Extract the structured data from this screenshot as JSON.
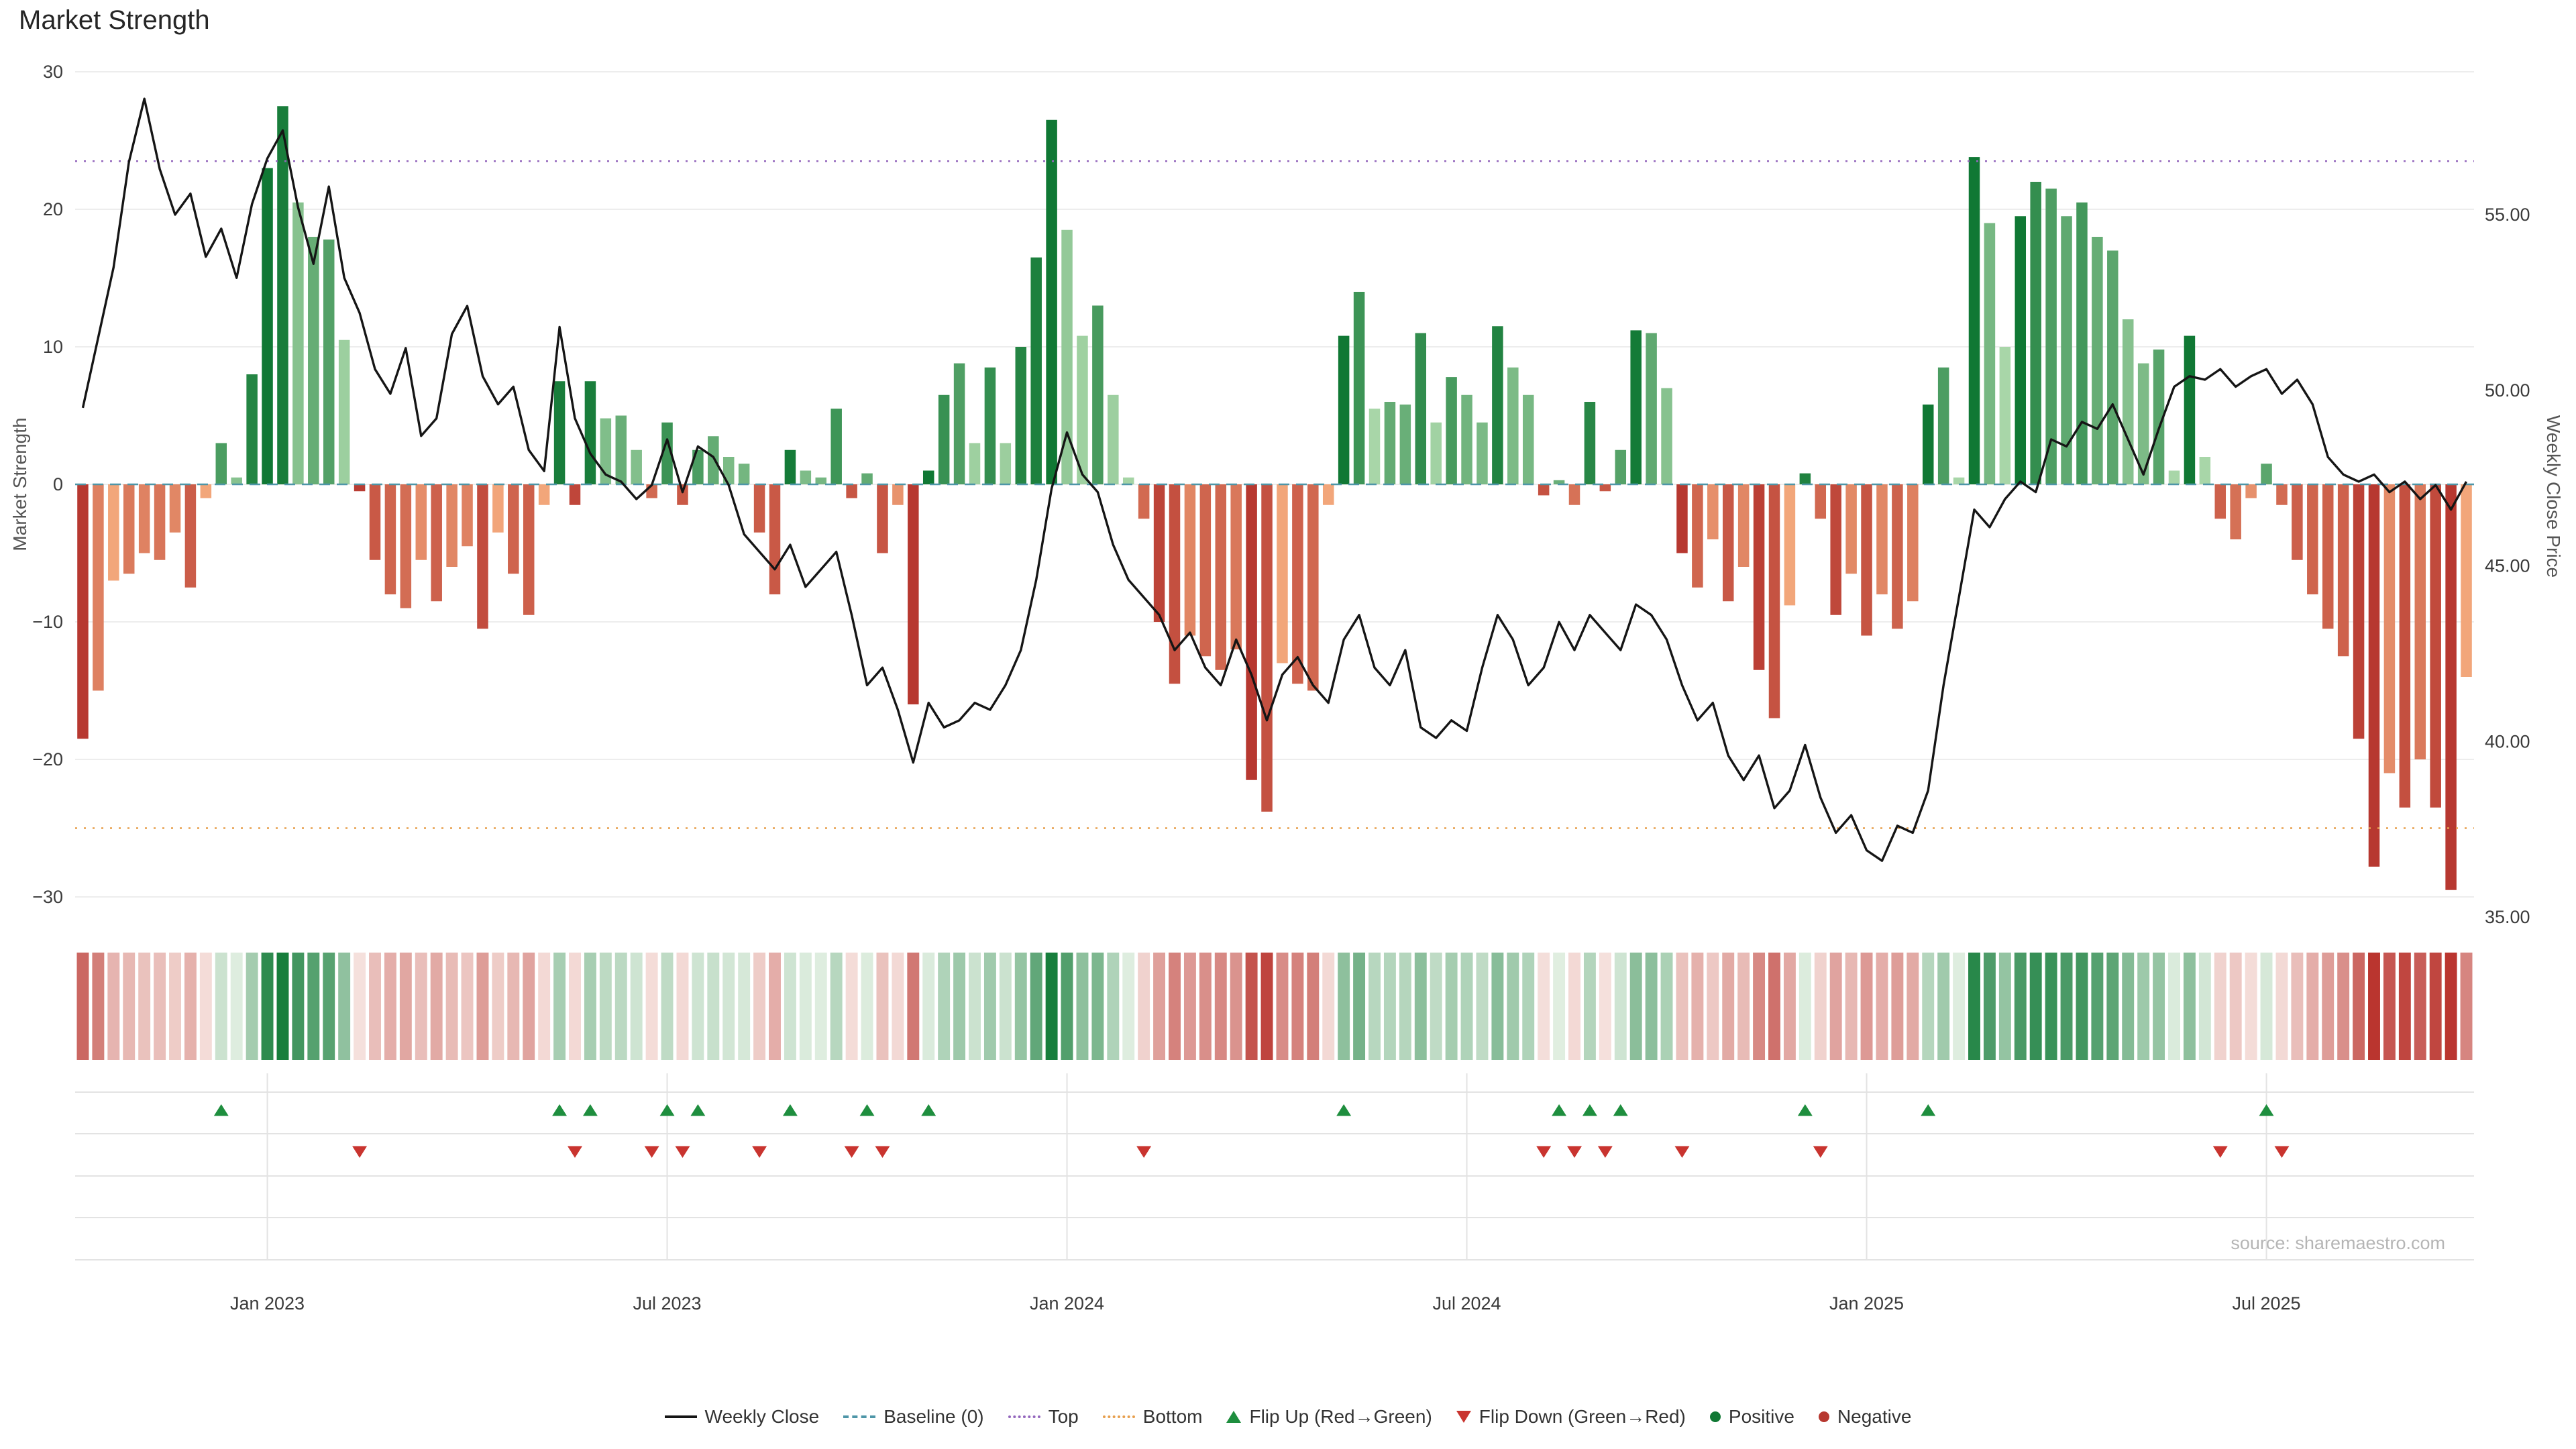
{
  "title": "Market Strength",
  "source_note": "source: sharemaestro.com",
  "colors": {
    "weekly_close_line": "#151515",
    "baseline": "#4e96a8",
    "top_line": "#9467bd",
    "bottom_line": "#e79f4d",
    "positive_dark": "#107834",
    "positive_light": "#a8d6a8",
    "negative_dark": "#b73830",
    "negative_light": "#f2a67a",
    "flip_up": "#1e8e3e",
    "flip_down": "#c9342f",
    "grid": "#ededed",
    "panel_grid": "#e3e3e3",
    "tick_text": "#3b3b3b"
  },
  "chart_data": {
    "type": "bar+line",
    "title": "Market Strength",
    "n_points": 156,
    "x_axis": {
      "unit": "week",
      "tick_labels": [
        "Jan 2023",
        "Jul 2023",
        "Jan 2024",
        "Jul 2024",
        "Jan 2025",
        "Jul 2025"
      ],
      "tick_weeks": [
        12,
        38,
        64,
        90,
        116,
        142
      ]
    },
    "left_axis": {
      "label": "Market Strength",
      "range": [
        -30,
        30
      ],
      "ticks": [
        30,
        20,
        10,
        0,
        -10,
        -20,
        -30
      ],
      "tick_labels": [
        "30",
        "20",
        "10",
        "0",
        "−10",
        "−20",
        "−30"
      ]
    },
    "right_axis": {
      "label": "Weekly Close Price",
      "ticks": [
        55,
        50,
        45,
        40,
        35
      ],
      "tick_labels": [
        "55.00",
        "50.00",
        "45.00",
        "40.00",
        "35.00"
      ]
    },
    "series": [
      {
        "name": "Market Strength",
        "type": "bar",
        "axis": "left",
        "values": [
          -18.5,
          -15,
          -7,
          -6.5,
          -5,
          -5.5,
          -3.5,
          -7.5,
          -1,
          3,
          0.5,
          8,
          23,
          27.5,
          20.5,
          18,
          17.8,
          10.5,
          -0.5,
          -5.5,
          -8,
          -9,
          -5.5,
          -8.5,
          -6,
          -4.5,
          -10.5,
          -3.5,
          -6.5,
          -9.5,
          -1.5,
          7.5,
          -1.5,
          7.5,
          4.8,
          5,
          2.5,
          -1,
          4.5,
          -1.5,
          2.5,
          3.5,
          2,
          1.5,
          -3.5,
          -8,
          2.5,
          1,
          0.5,
          5.5,
          -1,
          0.8,
          -5,
          -1.5,
          -16,
          1,
          6.5,
          8.8,
          3,
          8.5,
          3,
          10,
          16.5,
          26.5,
          18.5,
          10.8,
          13,
          6.5,
          0.5,
          -2.5,
          -10,
          -14.5,
          -11,
          -12.5,
          -13.5,
          -12,
          -21.5,
          -23.8,
          -13,
          -14.5,
          -15,
          -1.5,
          10.8,
          14,
          5.5,
          6,
          5.8,
          11,
          4.5,
          7.8,
          6.5,
          4.5,
          11.5,
          8.5,
          6.5,
          -0.8,
          0.3,
          -1.5,
          6,
          -0.5,
          2.5,
          11.2,
          11,
          7,
          -5,
          -7.5,
          -4,
          -8.5,
          -6,
          -13.5,
          -17,
          -8.8,
          0.8,
          -2.5,
          -9.5,
          -6.5,
          -11,
          -8,
          -10.5,
          -8.5,
          5.8,
          8.5,
          0.5,
          23.8,
          19,
          10,
          19.5,
          22,
          21.5,
          19.5,
          20.5,
          18,
          17,
          12,
          8.8,
          9.8,
          1,
          10.8,
          2,
          -2.5,
          -4,
          -1,
          1.5,
          -1.5,
          -5.5,
          -8,
          -10.5,
          -12.5,
          -18.5,
          -27.8,
          -21,
          -23.5,
          -20,
          -23.5,
          -29.5,
          -14
        ]
      },
      {
        "name": "Weekly Close",
        "type": "line",
        "axis": "right",
        "values": [
          49.5,
          51.5,
          53.5,
          56.5,
          58.3,
          56.3,
          55,
          55.6,
          53.8,
          54.6,
          53.2,
          55.3,
          56.6,
          57.4,
          55.2,
          53.6,
          55.8,
          53.2,
          52.2,
          50.6,
          49.9,
          51.2,
          48.7,
          49.2,
          51.6,
          52.4,
          50.4,
          49.6,
          50.1,
          48.3,
          47.7,
          51.8,
          49.2,
          48.2,
          47.6,
          47.4,
          46.9,
          47.3,
          48.6,
          47.1,
          48.4,
          48.1,
          47.3,
          45.9,
          45.4,
          44.9,
          45.6,
          44.4,
          44.9,
          45.4,
          43.6,
          41.6,
          42.1,
          40.9,
          39.4,
          41.1,
          40.4,
          40.6,
          41.1,
          40.9,
          41.6,
          42.6,
          44.6,
          47.2,
          48.8,
          47.6,
          47.1,
          45.6,
          44.6,
          44.1,
          43.6,
          42.6,
          43.1,
          42.1,
          41.6,
          42.9,
          41.9,
          40.6,
          41.9,
          42.4,
          41.6,
          41.1,
          42.9,
          43.6,
          42.1,
          41.6,
          42.6,
          40.4,
          40.1,
          40.6,
          40.3,
          42.1,
          43.6,
          42.9,
          41.6,
          42.1,
          43.4,
          42.6,
          43.6,
          43.1,
          42.6,
          43.9,
          43.6,
          42.9,
          41.6,
          40.6,
          41.1,
          39.6,
          38.9,
          39.6,
          38.1,
          38.6,
          39.9,
          38.4,
          37.4,
          37.9,
          36.9,
          36.6,
          37.6,
          37.4,
          38.6,
          41.6,
          44.1,
          46.6,
          46.1,
          46.9,
          47.4,
          47.1,
          48.6,
          48.4,
          49.1,
          48.9,
          49.6,
          48.6,
          47.6,
          48.9,
          50.1,
          50.4,
          50.3,
          50.6,
          50.1,
          50.4,
          50.6,
          49.9,
          50.3,
          49.6,
          48.1,
          47.6,
          47.4,
          47.6,
          47.1,
          47.4,
          46.9,
          47.3,
          46.6,
          47.4
        ]
      }
    ],
    "reference_lines": [
      {
        "name": "Baseline (0)",
        "value": 0,
        "style": "dashed",
        "color": "#4e96a8"
      },
      {
        "name": "Top",
        "value": 23.5,
        "style": "dotted",
        "color": "#9467bd"
      },
      {
        "name": "Bottom",
        "value": -25,
        "style": "dotted",
        "color": "#e79f4d"
      }
    ],
    "markers": {
      "flip_up_weeks": [
        9,
        31,
        33,
        38,
        40,
        46,
        51,
        55,
        82,
        96,
        98,
        100,
        112,
        120,
        142
      ],
      "flip_down_weeks": [
        18,
        32,
        37,
        39,
        44,
        50,
        52,
        69,
        95,
        97,
        99,
        104,
        113,
        139,
        143
      ]
    },
    "heatmap": {
      "name": "Weekly strength color strip",
      "source_series": "Market Strength"
    },
    "legend_position": "bottom-center",
    "grid": "horizontal-only"
  },
  "legend": {
    "items": [
      {
        "label": "Weekly Close",
        "swatch": "line",
        "color": "#151515"
      },
      {
        "label": "Baseline (0)",
        "swatch": "dashed",
        "color": "#4e96a8"
      },
      {
        "label": "Top",
        "swatch": "dotted",
        "color": "#9467bd"
      },
      {
        "label": "Bottom",
        "swatch": "dotted",
        "color": "#e79f4d"
      },
      {
        "label": "Flip Up (Red→Green)",
        "swatch": "triangle-up",
        "color": "#1e8e3e"
      },
      {
        "label": "Flip Down (Green→Red)",
        "swatch": "triangle-down",
        "color": "#c9342f"
      },
      {
        "label": "Positive",
        "swatch": "dot",
        "color": "#107834"
      },
      {
        "label": "Negative",
        "swatch": "dot",
        "color": "#b73830"
      }
    ]
  }
}
